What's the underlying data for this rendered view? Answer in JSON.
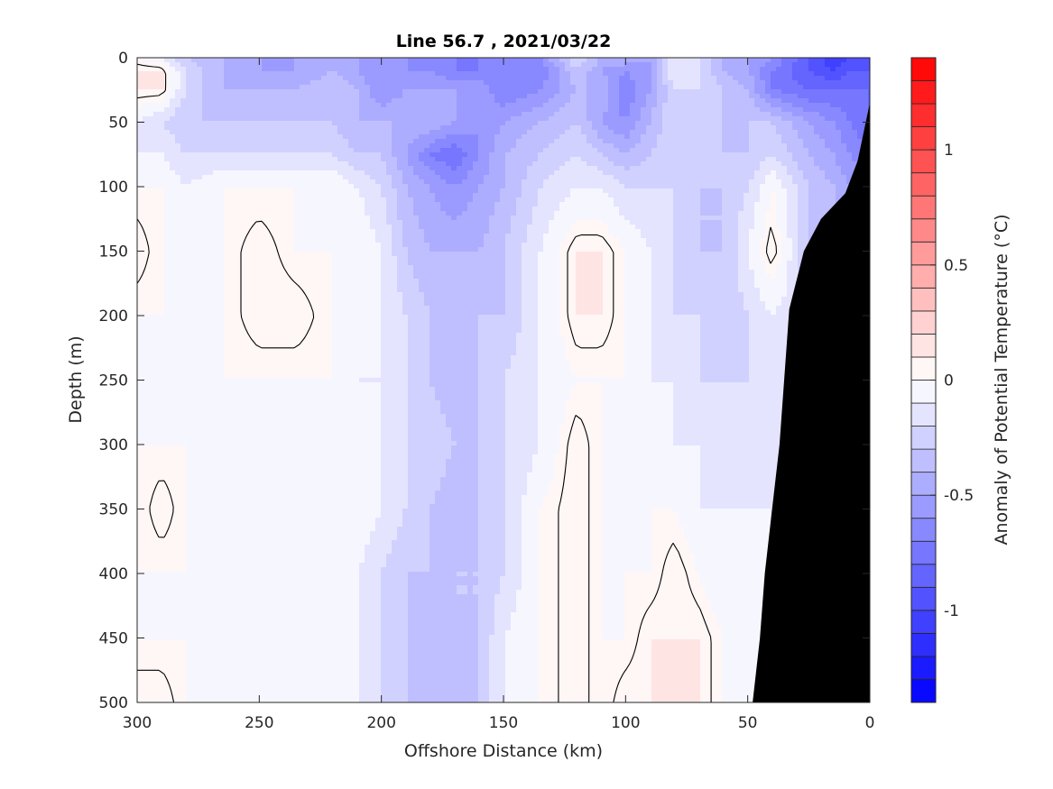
{
  "chart_data": {
    "type": "heatmap",
    "title": "Line 56.7 , 2021/03/22",
    "xlabel": "Offshore Distance (km)",
    "ylabel": "Depth (m)",
    "xlim": [
      300,
      0
    ],
    "ylim": [
      0,
      500
    ],
    "x_ticks": [
      300,
      250,
      200,
      150,
      100,
      50,
      0
    ],
    "y_ticks": [
      0,
      50,
      100,
      150,
      200,
      250,
      300,
      350,
      400,
      450,
      500
    ],
    "colorbar": {
      "label": "Anomaly of Potential Temperature (°C)",
      "range": [
        -1.4,
        1.4
      ],
      "step": 0.1,
      "ticks": [
        -1,
        -0.5,
        0,
        0.5,
        1
      ],
      "tick_labels": [
        "-1",
        "-0.5",
        "0",
        "0.5",
        "1"
      ]
    },
    "colors": {
      "negative_max": "#0000ff",
      "neutral": "#ffffff",
      "positive_max": "#ff0000",
      "bathymetry": "#000000",
      "contour": "#000000"
    },
    "seafloor": [
      [
        0,
        35
      ],
      [
        5,
        80
      ],
      [
        10,
        105
      ],
      [
        20,
        125
      ],
      [
        27,
        150
      ],
      [
        33,
        195
      ],
      [
        37,
        300
      ],
      [
        40,
        350
      ],
      [
        43,
        400
      ],
      [
        45,
        450
      ],
      [
        48,
        500
      ]
    ],
    "x_stations": [
      0,
      8,
      15,
      25,
      40,
      50,
      60,
      70,
      80,
      90,
      100,
      110,
      120,
      135,
      150,
      160,
      170,
      180,
      190,
      200,
      210,
      220,
      235,
      250,
      265,
      280,
      290,
      300
    ],
    "depths": [
      0,
      10,
      25,
      50,
      75,
      100,
      150,
      200,
      250,
      300,
      350,
      400,
      450,
      500
    ],
    "anomaly_grid": [
      [
        -1.0,
        -1.0,
        -1.1,
        -0.9,
        -0.6,
        -0.5,
        -0.4,
        -0.2,
        -0.1,
        -0.5,
        -0.4,
        -0.4,
        -0.2,
        -0.6,
        -0.6,
        -0.7,
        -0.7,
        -0.6,
        -0.6,
        -0.5,
        -0.5,
        -0.4,
        -0.5,
        -0.5,
        -0.4,
        -0.3,
        -0.1,
        0.0
      ],
      [
        -0.9,
        -0.9,
        -1.0,
        -0.9,
        -0.7,
        -0.5,
        -0.4,
        -0.2,
        -0.1,
        -0.5,
        -0.6,
        -0.5,
        -0.3,
        -0.7,
        -0.6,
        -0.7,
        -0.7,
        -0.6,
        -0.6,
        -0.6,
        -0.5,
        -0.4,
        -0.5,
        -0.5,
        -0.4,
        -0.2,
        0.1,
        0.1
      ],
      [
        -0.8,
        -0.8,
        -0.8,
        -0.8,
        -0.7,
        -0.4,
        -0.3,
        -0.2,
        -0.2,
        -0.5,
        -0.7,
        -0.4,
        -0.4,
        -0.6,
        -0.7,
        -0.5,
        -0.5,
        -0.5,
        -0.5,
        -0.6,
        -0.4,
        -0.3,
        -0.4,
        -0.4,
        -0.4,
        -0.2,
        0.1,
        0.1
      ],
      [
        -0.8,
        -0.7,
        -0.6,
        -0.5,
        -0.3,
        -0.3,
        -0.3,
        -0.2,
        -0.2,
        -0.4,
        -0.6,
        -0.5,
        -0.3,
        -0.4,
        -0.5,
        -0.6,
        -0.5,
        -0.4,
        -0.4,
        -0.4,
        -0.4,
        -0.3,
        -0.3,
        -0.3,
        -0.3,
        -0.3,
        -0.2,
        -0.1
      ],
      [
        -0.7,
        -0.6,
        -0.5,
        -0.4,
        -0.2,
        -0.3,
        -0.3,
        -0.2,
        -0.2,
        -0.3,
        -0.4,
        -0.3,
        -0.2,
        -0.3,
        -0.4,
        -0.6,
        -0.8,
        -0.7,
        -0.5,
        -0.3,
        -0.3,
        -0.2,
        -0.2,
        -0.2,
        -0.2,
        -0.2,
        -0.1,
        -0.1
      ],
      [
        -0.6,
        -0.5,
        -0.4,
        -0.3,
        0.0,
        -0.2,
        -0.3,
        -0.3,
        -0.2,
        -0.2,
        -0.2,
        -0.1,
        -0.1,
        -0.2,
        -0.4,
        -0.5,
        -0.6,
        -0.5,
        -0.4,
        -0.2,
        -0.1,
        0.0,
        0.0,
        0.0,
        0.0,
        -0.1,
        0.0,
        0.0
      ],
      [
        -0.5,
        -0.4,
        -0.3,
        -0.3,
        0.1,
        -0.1,
        -0.3,
        -0.3,
        -0.2,
        -0.1,
        0.0,
        0.1,
        0.1,
        -0.1,
        -0.3,
        -0.4,
        -0.4,
        -0.4,
        -0.3,
        -0.1,
        0.0,
        0.0,
        0.0,
        0.1,
        0.0,
        0.0,
        0.0,
        0.1
      ],
      [
        -0.4,
        -0.3,
        -0.3,
        -0.2,
        -0.1,
        -0.2,
        -0.3,
        -0.2,
        -0.2,
        -0.1,
        0.0,
        0.1,
        0.1,
        -0.1,
        -0.3,
        -0.3,
        -0.4,
        -0.3,
        -0.2,
        -0.1,
        0.0,
        0.0,
        0.1,
        0.1,
        0.0,
        0.0,
        0.0,
        0.0
      ],
      [
        -0.3,
        -0.3,
        -0.3,
        -0.2,
        -0.1,
        -0.2,
        -0.2,
        -0.2,
        -0.1,
        -0.1,
        0.0,
        0.0,
        0.0,
        -0.1,
        -0.2,
        -0.3,
        -0.4,
        -0.3,
        -0.2,
        -0.1,
        -0.1,
        0.0,
        0.0,
        0.0,
        0.0,
        0.0,
        0.0,
        0.0
      ],
      [
        -0.2,
        -0.2,
        -0.2,
        -0.2,
        -0.1,
        -0.1,
        -0.1,
        -0.1,
        -0.1,
        0.0,
        0.0,
        0.0,
        0.1,
        -0.1,
        -0.2,
        -0.3,
        -0.3,
        -0.2,
        -0.2,
        -0.1,
        0.0,
        -0.1,
        0.0,
        0.0,
        0.0,
        0.0,
        0.0,
        0.0
      ],
      [
        -0.2,
        -0.2,
        -0.2,
        -0.2,
        -0.1,
        -0.1,
        -0.1,
        -0.1,
        0.0,
        0.0,
        0.0,
        0.0,
        0.1,
        0.0,
        -0.2,
        -0.3,
        -0.4,
        -0.3,
        -0.2,
        -0.1,
        0.0,
        -0.1,
        -0.1,
        0.0,
        0.0,
        0.0,
        0.1,
        0.0
      ],
      [
        -0.2,
        -0.2,
        -0.2,
        -0.2,
        -0.1,
        0.0,
        -0.1,
        0.0,
        0.1,
        0.0,
        0.0,
        0.0,
        0.1,
        0.0,
        -0.2,
        -0.3,
        -0.3,
        -0.3,
        -0.3,
        -0.2,
        -0.1,
        0.0,
        0.0,
        0.0,
        0.0,
        0.0,
        0.0,
        0.0
      ],
      [
        -0.1,
        -0.1,
        -0.1,
        -0.1,
        -0.1,
        0.0,
        0.0,
        0.1,
        0.1,
        0.1,
        0.0,
        0.0,
        0.1,
        0.0,
        -0.1,
        -0.3,
        -0.3,
        -0.4,
        -0.3,
        -0.2,
        -0.1,
        -0.1,
        -0.1,
        -0.1,
        0.0,
        0.0,
        0.0,
        0.0
      ],
      [
        -0.1,
        -0.1,
        -0.1,
        -0.1,
        -0.1,
        0.0,
        0.0,
        0.1,
        0.1,
        0.1,
        0.1,
        0.0,
        0.1,
        0.0,
        -0.1,
        -0.3,
        -0.3,
        -0.4,
        -0.3,
        -0.2,
        -0.1,
        0.0,
        0.0,
        0.0,
        0.0,
        0.0,
        0.1,
        0.1
      ]
    ]
  }
}
